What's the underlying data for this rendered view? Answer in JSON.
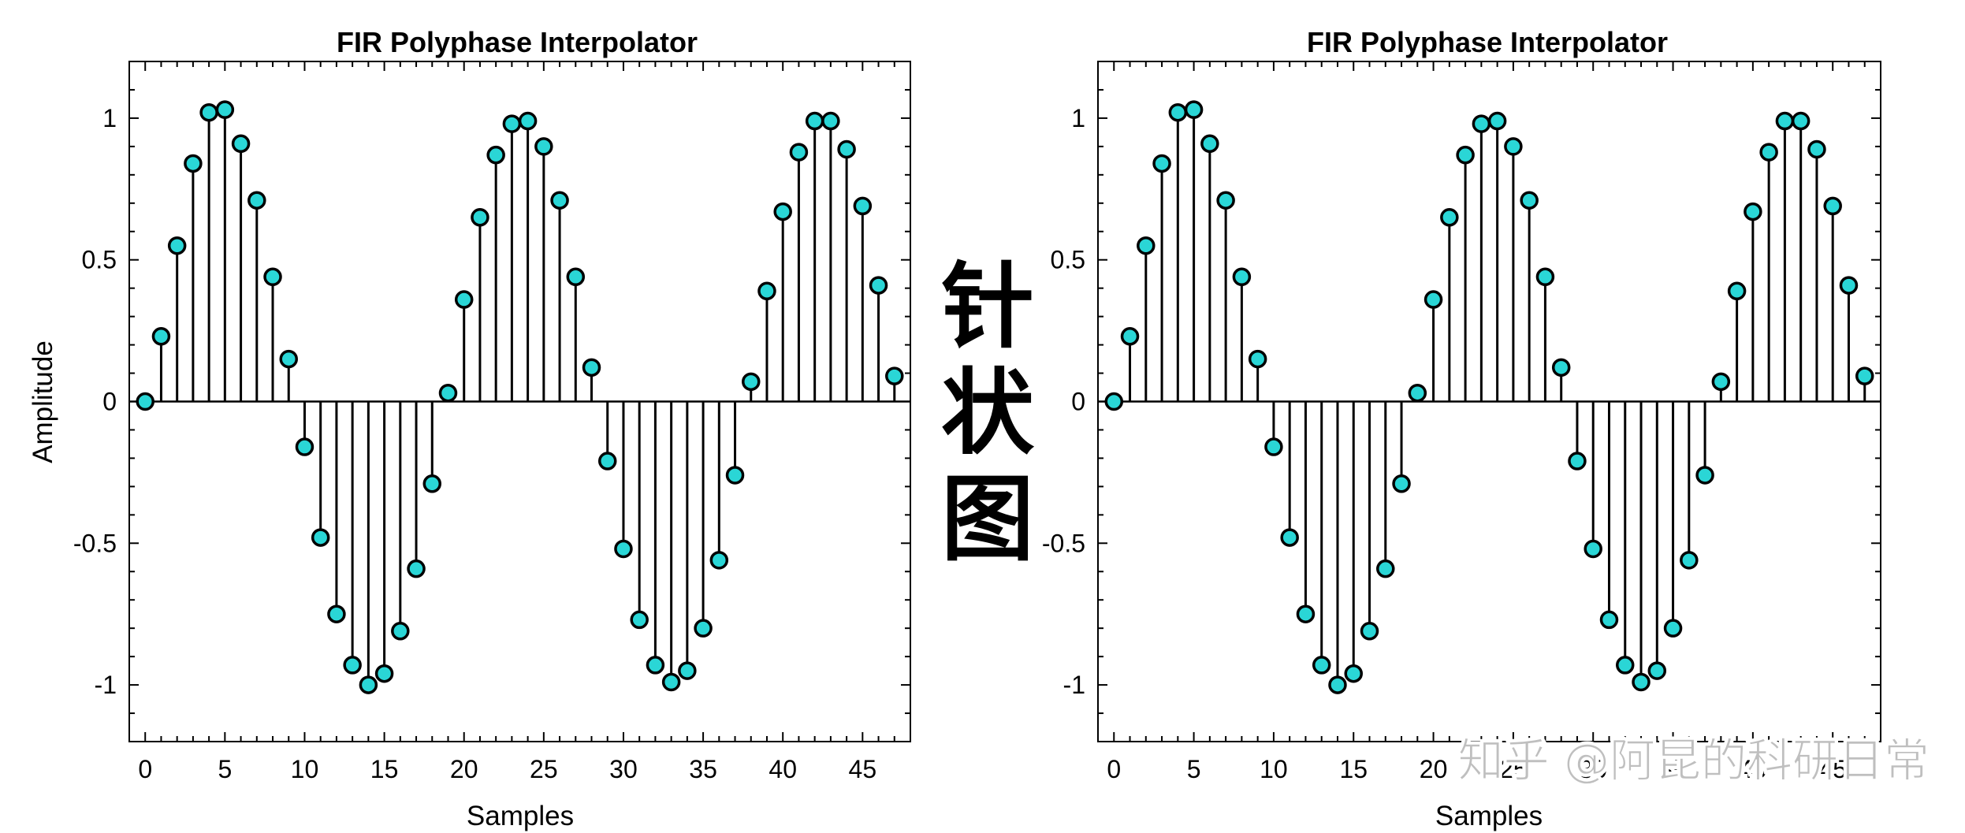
{
  "chart_data": [
    {
      "type": "stem",
      "title": "FIR Polyphase Interpolator",
      "xlabel": "Samples",
      "ylabel": "Amplitude",
      "xlim": [
        -1,
        48
      ],
      "ylim": [
        -1.2,
        1.2
      ],
      "xticks": [
        "0",
        "5",
        "10",
        "15",
        "20",
        "25",
        "30",
        "35",
        "40",
        "45"
      ],
      "yticks": [
        "-1",
        "-0.5",
        "0",
        "0.5",
        "1"
      ],
      "marker_color": "#2ad6d6",
      "line_color": "#000000",
      "x": [
        0,
        1,
        2,
        3,
        4,
        5,
        6,
        7,
        8,
        9,
        10,
        11,
        12,
        13,
        14,
        15,
        16,
        17,
        18,
        19,
        20,
        21,
        22,
        23,
        24,
        25,
        26,
        27,
        28,
        29,
        30,
        31,
        32,
        33,
        34,
        35,
        36,
        37,
        38,
        39,
        40,
        41,
        42,
        43,
        44,
        45,
        46,
        47
      ],
      "values": [
        0,
        0.23,
        0.55,
        0.84,
        1.02,
        1.03,
        0.91,
        0.71,
        0.44,
        0.15,
        -0.16,
        -0.48,
        -0.75,
        -0.93,
        -1.0,
        -0.96,
        -0.81,
        -0.59,
        -0.29,
        0.03,
        0.36,
        0.65,
        0.87,
        0.98,
        0.99,
        0.9,
        0.71,
        0.44,
        0.12,
        -0.21,
        -0.52,
        -0.77,
        -0.93,
        -0.99,
        -0.95,
        -0.8,
        -0.56,
        -0.26,
        0.07,
        0.39,
        0.67,
        0.88,
        0.99,
        0.99,
        0.89,
        0.69,
        0.41,
        0.09
      ]
    },
    {
      "type": "stem",
      "title": "FIR Polyphase Interpolator",
      "xlabel": "Samples",
      "ylabel": "",
      "xlim": [
        -1,
        48
      ],
      "ylim": [
        -1.2,
        1.2
      ],
      "xticks": [
        "0",
        "5",
        "10",
        "15",
        "20",
        "25",
        "30",
        "35",
        "40",
        "45"
      ],
      "yticks": [
        "-1",
        "-0.5",
        "0",
        "0.5",
        "1"
      ],
      "marker_color": "#2ad6d6",
      "line_color": "#000000",
      "x": [
        0,
        1,
        2,
        3,
        4,
        5,
        6,
        7,
        8,
        9,
        10,
        11,
        12,
        13,
        14,
        15,
        16,
        17,
        18,
        19,
        20,
        21,
        22,
        23,
        24,
        25,
        26,
        27,
        28,
        29,
        30,
        31,
        32,
        33,
        34,
        35,
        36,
        37,
        38,
        39,
        40,
        41,
        42,
        43,
        44,
        45,
        46,
        47
      ],
      "values": [
        0,
        0.23,
        0.55,
        0.84,
        1.02,
        1.03,
        0.91,
        0.71,
        0.44,
        0.15,
        -0.16,
        -0.48,
        -0.75,
        -0.93,
        -1.0,
        -0.96,
        -0.81,
        -0.59,
        -0.29,
        0.03,
        0.36,
        0.65,
        0.87,
        0.98,
        0.99,
        0.9,
        0.71,
        0.44,
        0.12,
        -0.21,
        -0.52,
        -0.77,
        -0.93,
        -0.99,
        -0.95,
        -0.8,
        -0.56,
        -0.26,
        0.07,
        0.39,
        0.67,
        0.88,
        0.99,
        0.99,
        0.89,
        0.69,
        0.41,
        0.09
      ]
    }
  ],
  "overlay": {
    "calligraphy": [
      "针",
      "状",
      "图"
    ],
    "watermark": "知乎 @阿昆的科研日常"
  }
}
